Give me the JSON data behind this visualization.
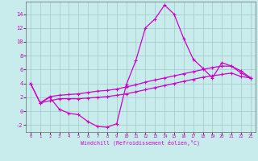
{
  "bg_color": "#c8ecec",
  "grid_color": "#a0c8c8",
  "line_color": "#cc00cc",
  "xlim_min": -0.5,
  "xlim_max": 23.5,
  "ylim_min": -3.0,
  "ylim_max": 15.8,
  "yticks": [
    -2,
    0,
    2,
    4,
    6,
    8,
    10,
    12,
    14
  ],
  "xticks": [
    0,
    1,
    2,
    3,
    4,
    5,
    6,
    7,
    8,
    9,
    10,
    11,
    12,
    13,
    14,
    15,
    16,
    17,
    18,
    19,
    20,
    21,
    22,
    23
  ],
  "xlabel": "Windchill (Refroidissement éolien,°C)",
  "line1_x": [
    0,
    1,
    2,
    3,
    4,
    5,
    6,
    7,
    8,
    9,
    10,
    11,
    12,
    13,
    14,
    15,
    16,
    17,
    18,
    19,
    20,
    21,
    22,
    23
  ],
  "line1_y": [
    4.0,
    1.2,
    2.0,
    0.3,
    -0.3,
    -0.5,
    -1.5,
    -2.2,
    -2.3,
    -1.8,
    3.8,
    7.3,
    12.0,
    13.3,
    15.3,
    14.0,
    10.5,
    7.5,
    6.2,
    4.8,
    7.0,
    6.5,
    5.8,
    4.8
  ],
  "line2_x": [
    0,
    1,
    2,
    3,
    4,
    5,
    6,
    7,
    8,
    9,
    10,
    11,
    12,
    13,
    14,
    15,
    16,
    17,
    18,
    19,
    20,
    21,
    22,
    23
  ],
  "line2_y": [
    4.0,
    1.2,
    2.1,
    2.3,
    2.4,
    2.5,
    2.7,
    2.9,
    3.0,
    3.2,
    3.5,
    3.8,
    4.2,
    4.5,
    4.8,
    5.1,
    5.4,
    5.7,
    6.0,
    6.3,
    6.5,
    6.5,
    5.5,
    4.8
  ],
  "line3_x": [
    1,
    2,
    3,
    4,
    5,
    6,
    7,
    8,
    9,
    10,
    11,
    12,
    13,
    14,
    15,
    16,
    17,
    18,
    19,
    20,
    21,
    22,
    23
  ],
  "line3_y": [
    1.2,
    1.5,
    1.8,
    1.8,
    1.8,
    1.9,
    2.0,
    2.1,
    2.3,
    2.5,
    2.8,
    3.1,
    3.4,
    3.7,
    4.0,
    4.3,
    4.6,
    4.9,
    5.1,
    5.3,
    5.5,
    5.0,
    4.8
  ]
}
